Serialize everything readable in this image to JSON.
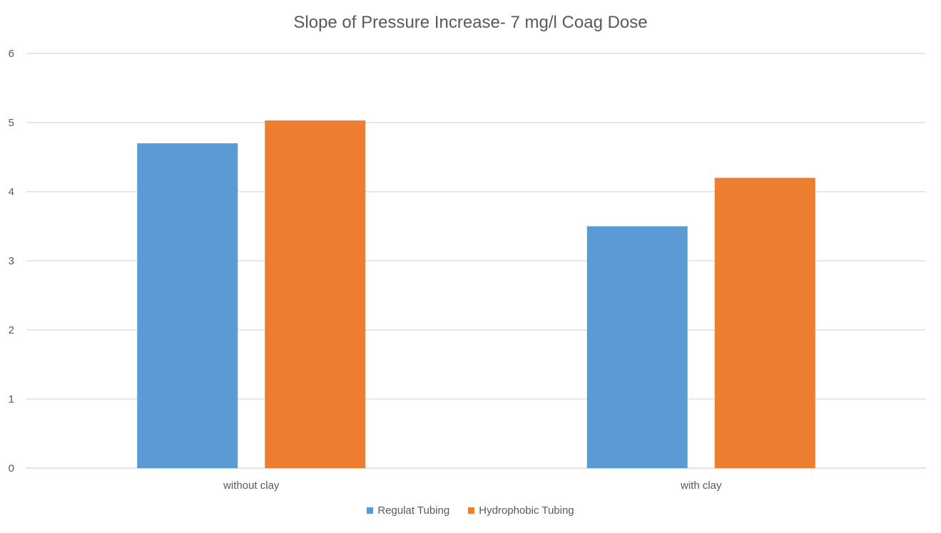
{
  "chart_data": {
    "type": "bar",
    "title": "Slope of Pressure Increase- 7 mg/l Coag Dose",
    "xlabel": "",
    "ylabel": "",
    "categories": [
      "without clay",
      "with clay"
    ],
    "series": [
      {
        "name": "Regulat Tubing",
        "values": [
          4.7,
          3.5
        ],
        "color": "#5B9BD5"
      },
      {
        "name": "Hydrophobic Tubing",
        "values": [
          5.03,
          4.2
        ],
        "color": "#ED7D31"
      }
    ],
    "ylim": [
      0,
      6
    ],
    "yticks": [
      "0",
      "1",
      "2",
      "3",
      "4",
      "5",
      "6"
    ],
    "grid": true,
    "legend_position": "bottom",
    "gridline_color": "#D9D9D9"
  }
}
